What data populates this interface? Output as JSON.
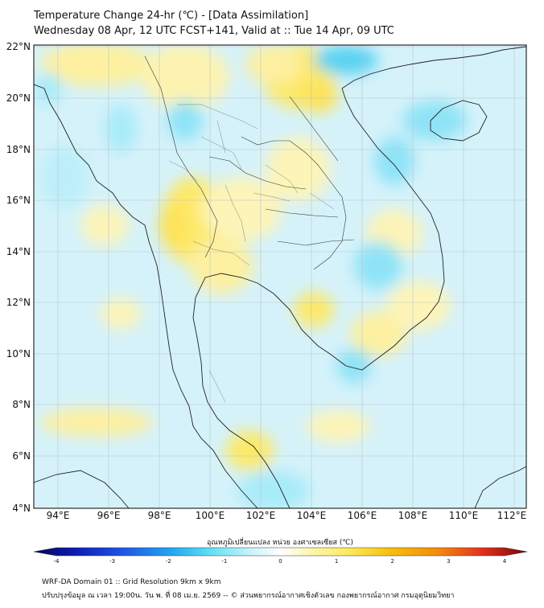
{
  "header": {
    "title": "Temperature Change 24-hr (℃) - [Data Assimilation]",
    "subtitle": "Wednesday 08 Apr, 12 UTC FCST+141, Valid at :: Tue 14 Apr, 09 UTC"
  },
  "map": {
    "lat_labels": [
      "22°N",
      "20°N",
      "18°N",
      "16°N",
      "14°N",
      "12°N",
      "10°N",
      "8°N",
      "6°N",
      "4°N"
    ],
    "lon_labels": [
      "94°E",
      "96°E",
      "98°E",
      "100°E",
      "102°E",
      "104°E",
      "106°E",
      "108°E",
      "110°E",
      "112°E"
    ],
    "lat_range": [
      4,
      22
    ],
    "lon_range": [
      93,
      112.5
    ],
    "grid": true
  },
  "colorbar": {
    "title": "อุณหภูมิเปลี่ยนแปลง หน่วย องศาเซลเซียส (℃)",
    "ticks": [
      "-4",
      "-3",
      "-2",
      "-1",
      "0",
      "1",
      "2",
      "3",
      "4"
    ],
    "range": [
      -4,
      4
    ],
    "colors": [
      "#08005e",
      "#0d1fb8",
      "#1f55e6",
      "#21a8f0",
      "#62e2f5",
      "#c8f4fa",
      "#ffffff",
      "#fdf6b0",
      "#fde95a",
      "#f8c10f",
      "#f48a0c",
      "#e3301e",
      "#7a0303"
    ]
  },
  "footer": {
    "line1": "WRF-DA Domain 01 :: Grid Resolution 9km x 9km",
    "line2": "ปรับปรุงข้อมูล ณ เวลา 19:00น. วัน พ. ที่ 08 เม.ย. 2569 -- © ส่วนพยากรณ์อากาศเชิงตัวเลข กองพยากรณ์อากาศ กรมอุตุนิยมวิทยา"
  }
}
